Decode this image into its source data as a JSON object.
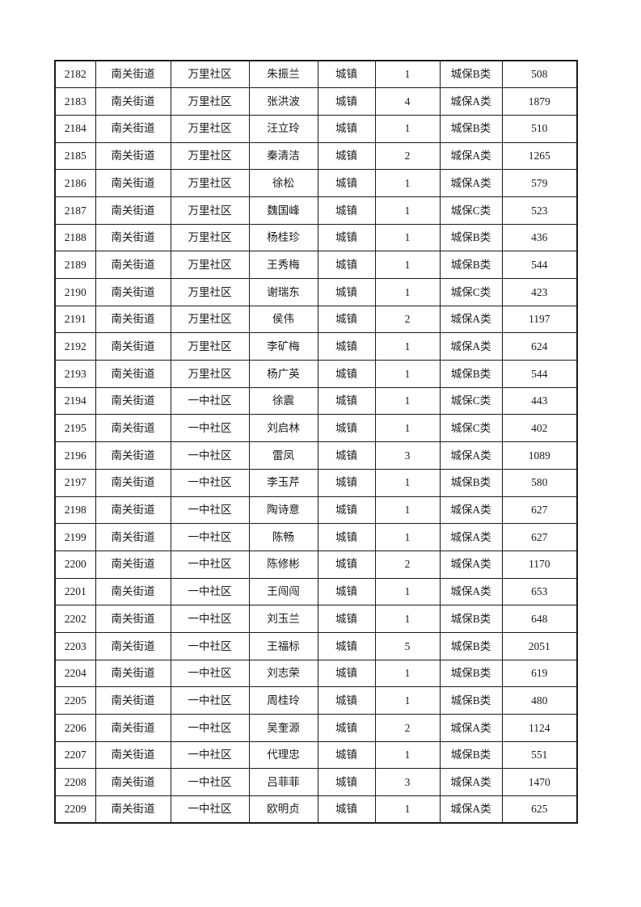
{
  "page": {
    "background": "#ffffff",
    "border_color": "#1a1a1a",
    "text_color": "#1a1a1a"
  },
  "table": {
    "column_semantics": [
      "id",
      "street",
      "community",
      "name",
      "residence-type",
      "person-count",
      "category",
      "amount"
    ],
    "rows": [
      [
        "2182",
        "南关街道",
        "万里社区",
        "朱振兰",
        "城镇",
        "1",
        "城保B类",
        "508"
      ],
      [
        "2183",
        "南关街道",
        "万里社区",
        "张洪波",
        "城镇",
        "4",
        "城保A类",
        "1879"
      ],
      [
        "2184",
        "南关街道",
        "万里社区",
        "汪立玲",
        "城镇",
        "1",
        "城保B类",
        "510"
      ],
      [
        "2185",
        "南关街道",
        "万里社区",
        "秦清洁",
        "城镇",
        "2",
        "城保A类",
        "1265"
      ],
      [
        "2186",
        "南关街道",
        "万里社区",
        "徐松",
        "城镇",
        "1",
        "城保A类",
        "579"
      ],
      [
        "2187",
        "南关街道",
        "万里社区",
        "魏国峰",
        "城镇",
        "1",
        "城保C类",
        "523"
      ],
      [
        "2188",
        "南关街道",
        "万里社区",
        "杨桂珍",
        "城镇",
        "1",
        "城保B类",
        "436"
      ],
      [
        "2189",
        "南关街道",
        "万里社区",
        "王秀梅",
        "城镇",
        "1",
        "城保B类",
        "544"
      ],
      [
        "2190",
        "南关街道",
        "万里社区",
        "谢瑞东",
        "城镇",
        "1",
        "城保C类",
        "423"
      ],
      [
        "2191",
        "南关街道",
        "万里社区",
        "侯伟",
        "城镇",
        "2",
        "城保A类",
        "1197"
      ],
      [
        "2192",
        "南关街道",
        "万里社区",
        "李矿梅",
        "城镇",
        "1",
        "城保A类",
        "624"
      ],
      [
        "2193",
        "南关街道",
        "万里社区",
        "杨广英",
        "城镇",
        "1",
        "城保B类",
        "544"
      ],
      [
        "2194",
        "南关街道",
        "一中社区",
        "徐震",
        "城镇",
        "1",
        "城保C类",
        "443"
      ],
      [
        "2195",
        "南关街道",
        "一中社区",
        "刘启林",
        "城镇",
        "1",
        "城保C类",
        "402"
      ],
      [
        "2196",
        "南关街道",
        "一中社区",
        "雷凤",
        "城镇",
        "3",
        "城保A类",
        "1089"
      ],
      [
        "2197",
        "南关街道",
        "一中社区",
        "李玉芹",
        "城镇",
        "1",
        "城保B类",
        "580"
      ],
      [
        "2198",
        "南关街道",
        "一中社区",
        "陶诗意",
        "城镇",
        "1",
        "城保A类",
        "627"
      ],
      [
        "2199",
        "南关街道",
        "一中社区",
        "陈畅",
        "城镇",
        "1",
        "城保A类",
        "627"
      ],
      [
        "2200",
        "南关街道",
        "一中社区",
        "陈修彬",
        "城镇",
        "2",
        "城保A类",
        "1170"
      ],
      [
        "2201",
        "南关街道",
        "一中社区",
        "王闯闯",
        "城镇",
        "1",
        "城保A类",
        "653"
      ],
      [
        "2202",
        "南关街道",
        "一中社区",
        "刘玉兰",
        "城镇",
        "1",
        "城保B类",
        "648"
      ],
      [
        "2203",
        "南关街道",
        "一中社区",
        "王福标",
        "城镇",
        "5",
        "城保B类",
        "2051"
      ],
      [
        "2204",
        "南关街道",
        "一中社区",
        "刘志荣",
        "城镇",
        "1",
        "城保B类",
        "619"
      ],
      [
        "2205",
        "南关街道",
        "一中社区",
        "周桂玲",
        "城镇",
        "1",
        "城保B类",
        "480"
      ],
      [
        "2206",
        "南关街道",
        "一中社区",
        "吴奎源",
        "城镇",
        "2",
        "城保A类",
        "1124"
      ],
      [
        "2207",
        "南关街道",
        "一中社区",
        "代理忠",
        "城镇",
        "1",
        "城保B类",
        "551"
      ],
      [
        "2208",
        "南关街道",
        "一中社区",
        "吕菲菲",
        "城镇",
        "3",
        "城保A类",
        "1470"
      ],
      [
        "2209",
        "南关街道",
        "一中社区",
        "欧明贞",
        "城镇",
        "1",
        "城保A类",
        "625"
      ]
    ]
  }
}
